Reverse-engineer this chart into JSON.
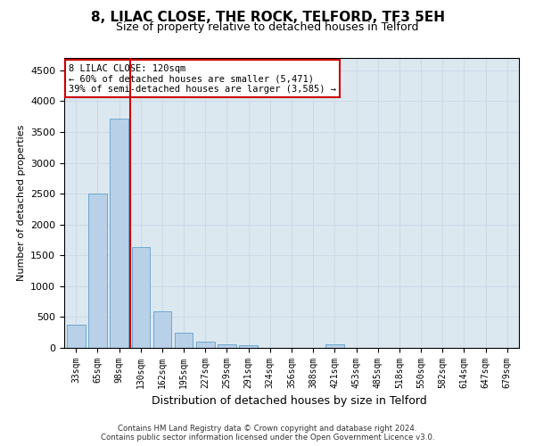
{
  "title": "8, LILAC CLOSE, THE ROCK, TELFORD, TF3 5EH",
  "subtitle": "Size of property relative to detached houses in Telford",
  "xlabel": "Distribution of detached houses by size in Telford",
  "ylabel": "Number of detached properties",
  "bar_color": "#b8d0e8",
  "bar_edge_color": "#6fa8d0",
  "vline_color": "#cc0000",
  "vline_x": 2.5,
  "annotation_text": "8 LILAC CLOSE: 120sqm\n← 60% of detached houses are smaller (5,471)\n39% of semi-detached houses are larger (3,585) →",
  "annotation_box_color": "#ffffff",
  "annotation_box_edge": "#cc0000",
  "categories": [
    "33sqm",
    "65sqm",
    "98sqm",
    "130sqm",
    "162sqm",
    "195sqm",
    "227sqm",
    "259sqm",
    "291sqm",
    "324sqm",
    "356sqm",
    "388sqm",
    "421sqm",
    "453sqm",
    "485sqm",
    "518sqm",
    "550sqm",
    "582sqm",
    "614sqm",
    "647sqm",
    "679sqm"
  ],
  "values": [
    380,
    2500,
    3720,
    1630,
    600,
    250,
    100,
    60,
    40,
    0,
    0,
    0,
    60,
    0,
    0,
    0,
    0,
    0,
    0,
    0,
    0
  ],
  "ylim": [
    0,
    4700
  ],
  "yticks": [
    0,
    500,
    1000,
    1500,
    2000,
    2500,
    3000,
    3500,
    4000,
    4500
  ],
  "grid_color": "#ccd9e8",
  "bg_color": "#dce8f0",
  "footer": "Contains HM Land Registry data © Crown copyright and database right 2024.\nContains public sector information licensed under the Open Government Licence v3.0.",
  "title_fontsize": 11,
  "subtitle_fontsize": 9
}
